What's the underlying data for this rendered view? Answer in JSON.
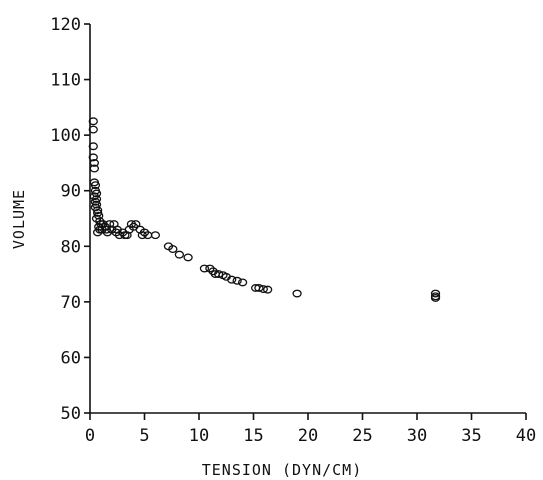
{
  "chart_data": {
    "type": "scatter",
    "title": "",
    "xlabel": "TENSION (DYN/CM)",
    "ylabel": "VOLUME",
    "xlim": [
      0,
      40
    ],
    "ylim": [
      50,
      120
    ],
    "xticks": [
      "0",
      "5",
      "10",
      "15",
      "20",
      "25",
      "30",
      "35",
      "40"
    ],
    "yticks": [
      "50",
      "60",
      "70",
      "80",
      "90",
      "100",
      "110",
      "120"
    ],
    "grid": false,
    "legend": "none",
    "marker": "open-circle",
    "color": "#111111",
    "series": [
      {
        "points": [
          [
            0.3,
            102.5
          ],
          [
            0.3,
            101.0
          ],
          [
            0.3,
            98.0
          ],
          [
            0.3,
            96.0
          ],
          [
            0.4,
            95.0
          ],
          [
            0.4,
            94.0
          ],
          [
            0.4,
            91.5
          ],
          [
            0.5,
            91.0
          ],
          [
            0.5,
            90.0
          ],
          [
            0.6,
            89.5
          ],
          [
            0.4,
            89.0
          ],
          [
            0.6,
            88.5
          ],
          [
            0.5,
            88.0
          ],
          [
            0.6,
            87.5
          ],
          [
            0.5,
            87.0
          ],
          [
            0.7,
            86.5
          ],
          [
            0.7,
            86.0
          ],
          [
            0.8,
            85.5
          ],
          [
            0.6,
            85.0
          ],
          [
            0.9,
            84.5
          ],
          [
            1.0,
            84.0
          ],
          [
            0.8,
            83.5
          ],
          [
            0.9,
            83.0
          ],
          [
            1.1,
            83.0
          ],
          [
            0.7,
            82.5
          ],
          [
            1.2,
            84.0
          ],
          [
            1.4,
            83.5
          ],
          [
            1.5,
            83.0
          ],
          [
            1.6,
            82.5
          ],
          [
            1.8,
            84.0
          ],
          [
            2.0,
            83.0
          ],
          [
            2.2,
            84.0
          ],
          [
            2.4,
            82.5
          ],
          [
            2.5,
            83.0
          ],
          [
            2.7,
            82.0
          ],
          [
            3.0,
            82.5
          ],
          [
            3.2,
            82.0
          ],
          [
            3.4,
            82.0
          ],
          [
            3.6,
            83.0
          ],
          [
            3.8,
            84.0
          ],
          [
            4.0,
            83.5
          ],
          [
            4.2,
            84.0
          ],
          [
            4.6,
            83.0
          ],
          [
            4.8,
            82.0
          ],
          [
            5.0,
            82.5
          ],
          [
            5.3,
            82.0
          ],
          [
            6.0,
            82.0
          ],
          [
            7.2,
            80.0
          ],
          [
            7.6,
            79.5
          ],
          [
            8.2,
            78.5
          ],
          [
            9.0,
            78.0
          ],
          [
            10.5,
            76.0
          ],
          [
            11.0,
            76.0
          ],
          [
            11.3,
            75.5
          ],
          [
            11.5,
            75.0
          ],
          [
            11.8,
            75.0
          ],
          [
            12.2,
            74.8
          ],
          [
            12.5,
            74.5
          ],
          [
            13.0,
            74.0
          ],
          [
            13.5,
            73.8
          ],
          [
            14.0,
            73.5
          ],
          [
            15.2,
            72.5
          ],
          [
            15.5,
            72.5
          ],
          [
            15.9,
            72.3
          ],
          [
            16.3,
            72.2
          ],
          [
            19.0,
            71.5
          ],
          [
            31.7,
            71.5
          ],
          [
            31.7,
            71.0
          ],
          [
            31.7,
            70.7
          ]
        ]
      }
    ]
  }
}
